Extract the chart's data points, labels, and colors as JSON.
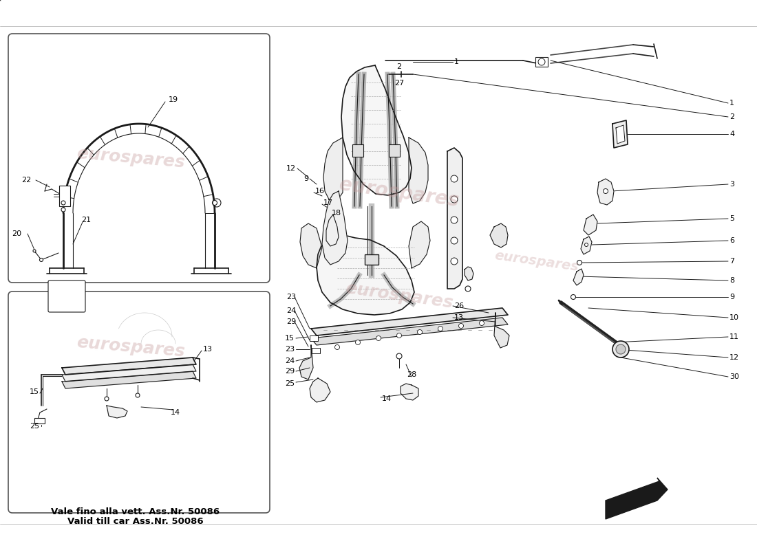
{
  "background_color": "#ffffff",
  "note_text_it": "Vale fino alla vett. Ass.Nr. 50086",
  "note_text_en": "Valid till car Ass.Nr. 50086",
  "watermark_text": "eurospares",
  "watermark_color": "#c8a0a0",
  "line_color": "#1a1a1a",
  "thin_line": 0.8,
  "med_line": 1.2,
  "thick_line": 2.0,
  "border_color": "#555555",
  "label_fontsize": 8,
  "note_fontsize": 9
}
